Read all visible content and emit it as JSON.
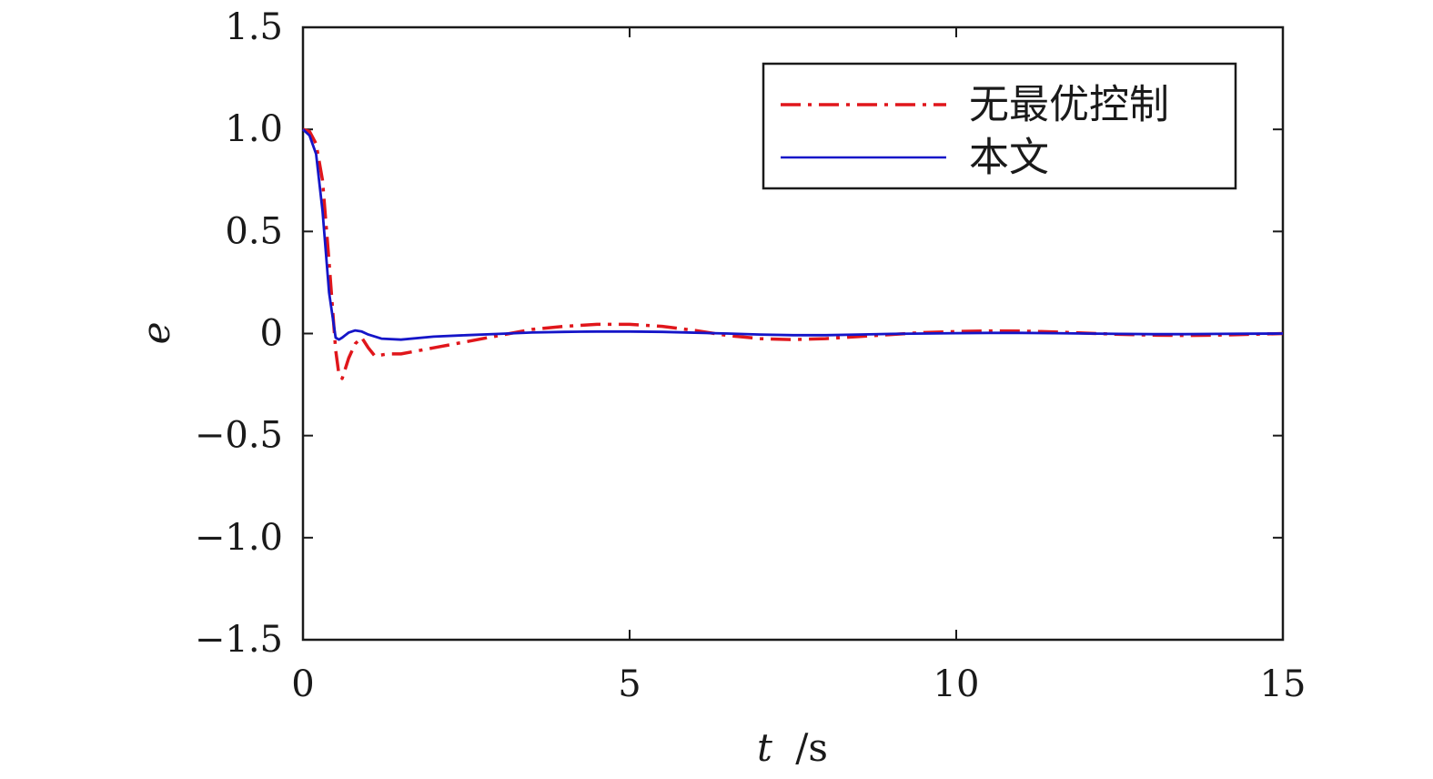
{
  "chart_data": {
    "type": "line",
    "xlabel": {
      "var": "t",
      "unit": "/s"
    },
    "ylabel": "e",
    "xlim": [
      0,
      15
    ],
    "ylim": [
      -1.5,
      1.5
    ],
    "x_ticks": [
      0,
      5,
      10,
      15
    ],
    "x_tick_labels": [
      "0",
      "5",
      "10",
      "15"
    ],
    "y_ticks": [
      1.5,
      1.0,
      0.5,
      0,
      -0.5,
      -1.0,
      -1.5
    ],
    "y_tick_labels": [
      "1.5",
      "1.0",
      "0.5",
      "0",
      "−0.5",
      "−1.0",
      "−1.5"
    ],
    "grid": false,
    "legend_position": "top-right",
    "series": [
      {
        "name": "无最优控制",
        "color": "#e0161b",
        "style": "dash-dot",
        "x": [
          0,
          0.1,
          0.2,
          0.3,
          0.4,
          0.5,
          0.55,
          0.6,
          0.7,
          0.8,
          0.9,
          1.0,
          1.1,
          1.3,
          1.5,
          2.0,
          2.5,
          3.0,
          3.5,
          4.0,
          4.5,
          5.0,
          5.5,
          6.0,
          6.5,
          7.0,
          7.5,
          8.0,
          8.5,
          9.0,
          9.5,
          10.0,
          10.5,
          11.0,
          11.5,
          12.0,
          12.5,
          13.0,
          13.5,
          14.0,
          14.5,
          15.0
        ],
        "y": [
          1.0,
          0.99,
          0.93,
          0.75,
          0.35,
          -0.08,
          -0.2,
          -0.22,
          -0.12,
          -0.05,
          -0.02,
          -0.07,
          -0.11,
          -0.1,
          -0.1,
          -0.07,
          -0.04,
          -0.01,
          0.02,
          0.035,
          0.045,
          0.045,
          0.035,
          0.015,
          -0.01,
          -0.025,
          -0.03,
          -0.025,
          -0.015,
          -0.005,
          0.005,
          0.01,
          0.013,
          0.012,
          0.008,
          0.002,
          -0.004,
          -0.008,
          -0.01,
          -0.008,
          -0.004,
          0.0
        ]
      },
      {
        "name": "本文",
        "color": "#1515c8",
        "style": "solid",
        "x": [
          0,
          0.1,
          0.2,
          0.3,
          0.4,
          0.5,
          0.55,
          0.6,
          0.7,
          0.8,
          0.9,
          1.0,
          1.2,
          1.5,
          2.0,
          2.5,
          3.0,
          3.5,
          4.0,
          4.5,
          5.0,
          5.5,
          6.0,
          6.5,
          7.0,
          7.5,
          8.0,
          8.5,
          9.0,
          9.5,
          10.0,
          10.5,
          11.0,
          11.5,
          12.0,
          12.5,
          13.0,
          13.5,
          14.0,
          14.5,
          15.0
        ],
        "y": [
          1.0,
          0.97,
          0.88,
          0.6,
          0.2,
          -0.02,
          -0.03,
          -0.02,
          0.005,
          0.015,
          0.01,
          -0.005,
          -0.025,
          -0.03,
          -0.015,
          -0.008,
          -0.002,
          0.005,
          0.008,
          0.01,
          0.01,
          0.008,
          0.004,
          0.0,
          -0.005,
          -0.008,
          -0.008,
          -0.005,
          -0.002,
          0.0,
          0.002,
          0.003,
          0.003,
          0.002,
          0.0,
          -0.002,
          -0.003,
          -0.003,
          -0.002,
          -0.001,
          0.0
        ]
      }
    ]
  }
}
